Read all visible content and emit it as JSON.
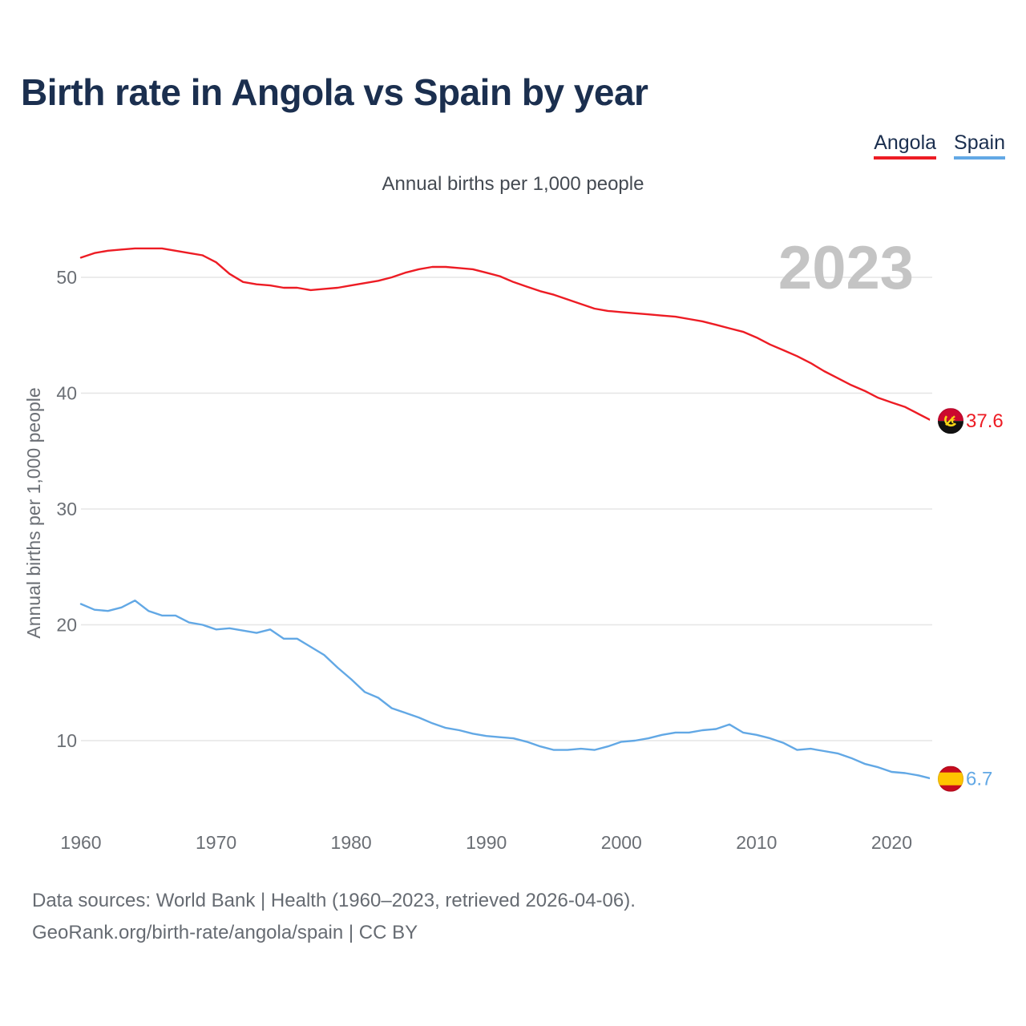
{
  "title": "Birth rate in Angola vs Spain by year",
  "subtitle": "Annual births per 1,000 people",
  "legend": [
    {
      "name": "Angola",
      "color": "#ed1c24"
    },
    {
      "name": "Spain",
      "color": "#62a8e5"
    }
  ],
  "watermark_year": "2023",
  "footer": {
    "line1": "Data sources: World Bank | Health (1960–2023, retrieved 2026-04-06).",
    "line2": "GeoRank.org/birth-rate/angola/spain | CC BY"
  },
  "chart_data": {
    "type": "line",
    "title": "Birth rate in Angola vs Spain by year",
    "ylabel": "Annual births per 1,000 people",
    "xlabel": "",
    "xlim": [
      1960,
      2023
    ],
    "ylim": [
      4,
      55
    ],
    "grid": true,
    "xticks": [
      1960,
      1970,
      1980,
      1990,
      2000,
      2010,
      2020
    ],
    "yticks": [
      10,
      20,
      30,
      40,
      50
    ],
    "x": [
      1960,
      1961,
      1962,
      1963,
      1964,
      1965,
      1966,
      1967,
      1968,
      1969,
      1970,
      1971,
      1972,
      1973,
      1974,
      1975,
      1976,
      1977,
      1978,
      1979,
      1980,
      1981,
      1982,
      1983,
      1984,
      1985,
      1986,
      1987,
      1988,
      1989,
      1990,
      1991,
      1992,
      1993,
      1994,
      1995,
      1996,
      1997,
      1998,
      1999,
      2000,
      2001,
      2002,
      2003,
      2004,
      2005,
      2006,
      2007,
      2008,
      2009,
      2010,
      2011,
      2012,
      2013,
      2014,
      2015,
      2016,
      2017,
      2018,
      2019,
      2020,
      2021,
      2022,
      2023
    ],
    "series": [
      {
        "name": "Angola",
        "color": "#ed1c24",
        "end_label": "37.6",
        "flag": "angola",
        "values": [
          51.7,
          52.1,
          52.3,
          52.4,
          52.5,
          52.5,
          52.5,
          52.3,
          52.1,
          51.9,
          51.3,
          50.3,
          49.6,
          49.4,
          49.3,
          49.1,
          49.1,
          48.9,
          49.0,
          49.1,
          49.3,
          49.5,
          49.7,
          50.0,
          50.4,
          50.7,
          50.9,
          50.9,
          50.8,
          50.7,
          50.4,
          50.1,
          49.6,
          49.2,
          48.8,
          48.5,
          48.1,
          47.7,
          47.3,
          47.1,
          47.0,
          46.9,
          46.8,
          46.7,
          46.6,
          46.4,
          46.2,
          45.9,
          45.6,
          45.3,
          44.8,
          44.2,
          43.7,
          43.2,
          42.6,
          41.9,
          41.3,
          40.7,
          40.2,
          39.6,
          39.2,
          38.8,
          38.2,
          37.6
        ]
      },
      {
        "name": "Spain",
        "color": "#62a8e5",
        "end_label": "6.7",
        "flag": "spain",
        "values": [
          21.8,
          21.3,
          21.2,
          21.5,
          22.1,
          21.2,
          20.8,
          20.8,
          20.2,
          20.0,
          19.6,
          19.7,
          19.5,
          19.3,
          19.6,
          18.8,
          18.8,
          18.1,
          17.4,
          16.3,
          15.3,
          14.2,
          13.7,
          12.8,
          12.4,
          12.0,
          11.5,
          11.1,
          10.9,
          10.6,
          10.4,
          10.3,
          10.2,
          9.9,
          9.5,
          9.2,
          9.2,
          9.3,
          9.2,
          9.5,
          9.9,
          10.0,
          10.2,
          10.5,
          10.7,
          10.7,
          10.9,
          11.0,
          11.4,
          10.7,
          10.5,
          10.2,
          9.8,
          9.2,
          9.3,
          9.1,
          8.9,
          8.5,
          8.0,
          7.7,
          7.3,
          7.2,
          7.0,
          6.7
        ]
      }
    ]
  }
}
